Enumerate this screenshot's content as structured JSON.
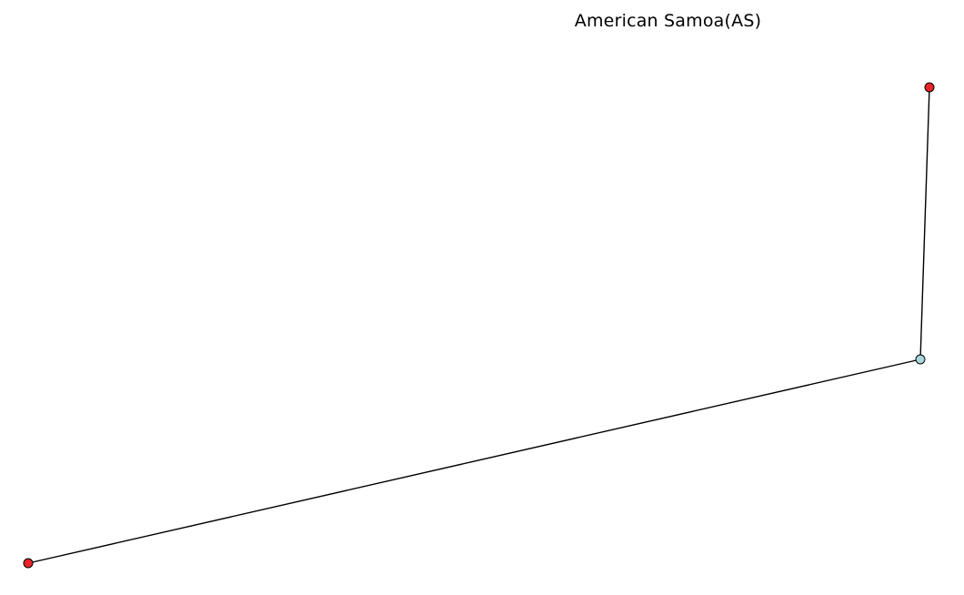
{
  "title": "American Samoa(AS)",
  "colors": {
    "edge": "#000000",
    "node_outline": "#000000",
    "node_red": "#e8242b",
    "node_light_blue": "#a8d8dc"
  },
  "graph": {
    "nodes": [
      {
        "id": "node-top-right",
        "color": "#e8242b"
      },
      {
        "id": "node-hub",
        "color": "#a8d8dc"
      },
      {
        "id": "node-bottom-left",
        "color": "#e8242b"
      }
    ],
    "edges": [
      {
        "source": "node-top-right",
        "target": "node-hub"
      },
      {
        "source": "node-hub",
        "target": "node-bottom-left"
      }
    ]
  }
}
